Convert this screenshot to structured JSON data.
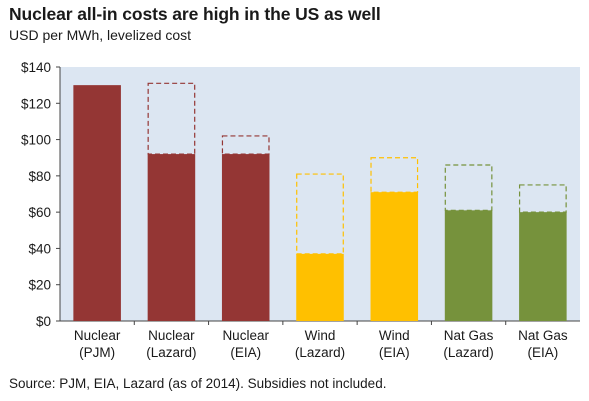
{
  "chart_data": {
    "type": "bar",
    "title": "Nuclear all-in costs are high in the US as well",
    "subtitle": "USD per MWh, levelized cost",
    "source": "Source: PJM, EIA, Lazard (as of 2014). Subsidies not included.",
    "ylim": [
      0,
      140
    ],
    "yticks": [
      0,
      20,
      40,
      60,
      80,
      100,
      120,
      140
    ],
    "ytick_labels": [
      "$0",
      "$20",
      "$40",
      "$60",
      "$80",
      "$100",
      "$120",
      "$140"
    ],
    "grid": false,
    "categories": [
      [
        "Nuclear",
        "(PJM)"
      ],
      [
        "Nuclear",
        "(Lazard)"
      ],
      [
        "Nuclear",
        "(EIA)"
      ],
      [
        "Wind",
        "(Lazard)"
      ],
      [
        "Wind",
        "(EIA)"
      ],
      [
        "Nat Gas",
        "(Lazard)"
      ],
      [
        "Nat Gas",
        "(EIA)"
      ]
    ],
    "series": [
      {
        "values": [
          130,
          92,
          92,
          37,
          71,
          61,
          60
        ]
      },
      {
        "values": [
          null,
          131,
          102,
          81,
          90,
          86,
          75
        ]
      }
    ],
    "colors": [
      "#943634",
      "#943634",
      "#943634",
      "#ffc000",
      "#ffc000",
      "#76923c",
      "#76923c"
    ],
    "plot_background": "#dce6f2"
  }
}
